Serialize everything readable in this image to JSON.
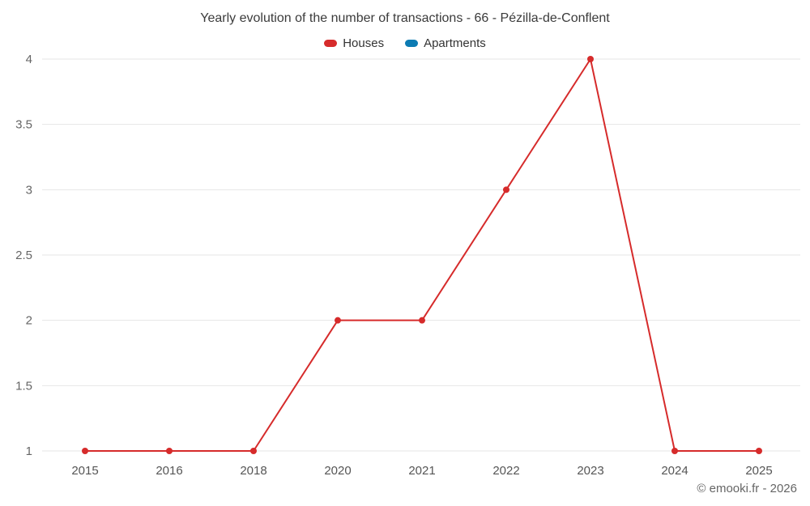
{
  "chart_data": {
    "type": "line",
    "title": "Yearly evolution of the number of transactions - 66 - Pézilla-de-Conflent",
    "categories": [
      "2015",
      "2016",
      "2018",
      "2020",
      "2021",
      "2022",
      "2023",
      "2024",
      "2025"
    ],
    "series": [
      {
        "name": "Houses",
        "color": "#d62b2b",
        "values": [
          1,
          1,
          1,
          2,
          2,
          3,
          4,
          1,
          1
        ]
      },
      {
        "name": "Apartments",
        "color": "#0c7bb3",
        "values": []
      }
    ],
    "xlabel": "",
    "ylabel": "",
    "ylim": [
      1,
      4
    ],
    "yticks": [
      1,
      1.5,
      2,
      2.5,
      3,
      3.5,
      4
    ],
    "grid": true,
    "legend_position": "top",
    "grid_color": "#e6e6e6"
  },
  "footer": {
    "credit": "© emooki.fr - 2026"
  }
}
